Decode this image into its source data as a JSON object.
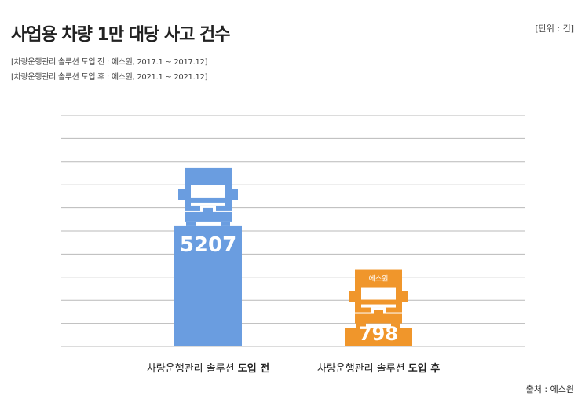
{
  "header": {
    "title": "사업용 차량 1만 대당 사고 건수",
    "unit": "[단위 : 건]",
    "note1": "[차량운행관리 솔루션 도입 전 : 에스원, 2017.1 ~ 2017.12]",
    "note2": "[차량운행관리 솔루션 도입 후 : 에스원, 2021.1 ~ 2021.12]"
  },
  "footer": {
    "source": "출처 : 에스원"
  },
  "colors": {
    "before": "#6a9de0",
    "after": "#f0962b",
    "grid": "#b9b9b9"
  },
  "chart_data": {
    "type": "bar",
    "categories": [
      {
        "prefix": "차량운행관리 솔루션 ",
        "bold": "도입 전"
      },
      {
        "prefix": "차량운행관리 솔루션 ",
        "bold": "도입 후"
      }
    ],
    "values": [
      5207,
      798
    ],
    "data_labels": [
      "5207",
      "798"
    ],
    "truck_badge": [
      "",
      "에스원"
    ],
    "ylim": [
      0,
      10000
    ],
    "grid": true,
    "grid_lines": 10
  }
}
